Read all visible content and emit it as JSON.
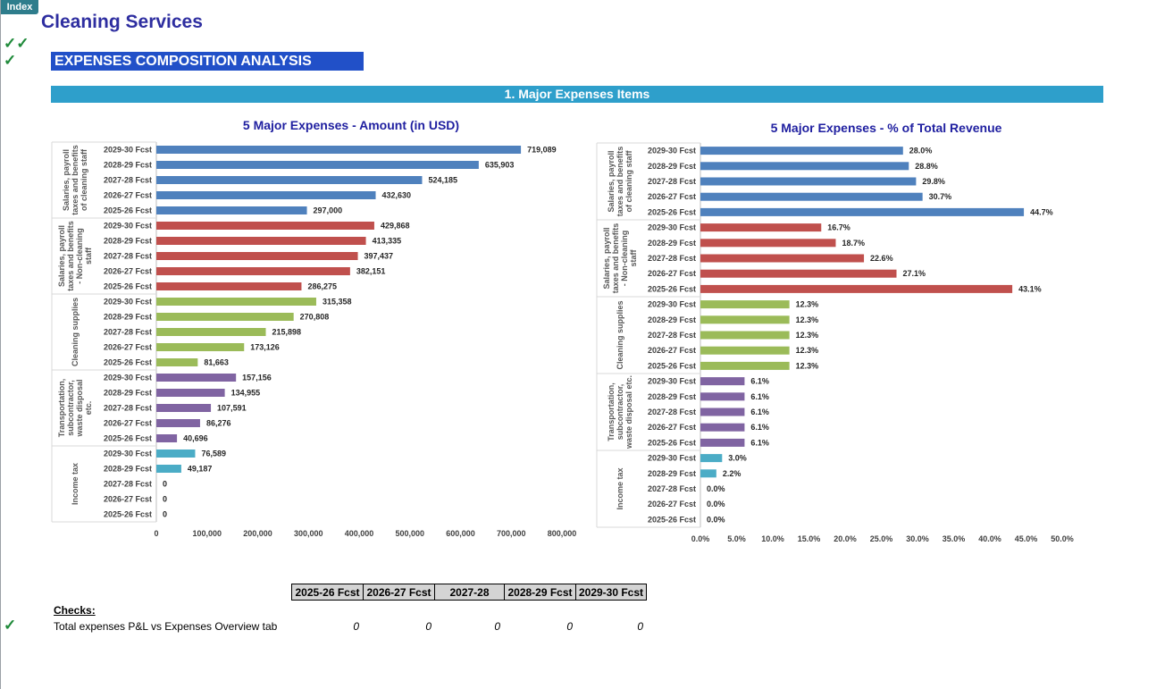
{
  "nav": {
    "index_label": "Index"
  },
  "app": {
    "title": "Cleaning Services"
  },
  "section": {
    "title": "EXPENSES COMPOSITION ANALYSIS"
  },
  "subsection": {
    "title": "1. Major Expenses Items"
  },
  "status": {
    "check_mark": "✓✓",
    "check_mark_single": "✓"
  },
  "colors": {
    "salaries_cleaning": "#4f81bd",
    "salaries_non_cleaning": "#c0504d",
    "cleaning_supplies": "#9bbb59",
    "transportation": "#8064a2",
    "income_tax": "#4bacc6",
    "title_blue": "#1f1fa0"
  },
  "chart_data": [
    {
      "type": "bar",
      "orientation": "horizontal",
      "title": "5 Major Expenses - Amount (in USD)",
      "xlim": [
        0,
        800000
      ],
      "xticks": [
        "0",
        "100,000",
        "200,000",
        "300,000",
        "400,000",
        "500,000",
        "600,000",
        "700,000",
        "800,000"
      ],
      "groups": [
        {
          "name": "Salaries, payroll taxes and benefits of cleaning staff",
          "categories": [
            "2029-30 Fcst",
            "2028-29 Fcst",
            "2027-28 Fcst",
            "2026-27 Fcst",
            "2025-26 Fcst"
          ],
          "values": [
            719089,
            635903,
            524185,
            432630,
            297000
          ],
          "labels": [
            "719,089",
            "635,903",
            "524,185",
            "432,630",
            "297,000"
          ]
        },
        {
          "name": "Salaries, payroll taxes and benefits - Non-cleaning staff",
          "categories": [
            "2029-30 Fcst",
            "2028-29 Fcst",
            "2027-28 Fcst",
            "2026-27 Fcst",
            "2025-26 Fcst"
          ],
          "values": [
            429868,
            413335,
            397437,
            382151,
            286275
          ],
          "labels": [
            "429,868",
            "413,335",
            "397,437",
            "382,151",
            "286,275"
          ]
        },
        {
          "name": "Cleaning supplies",
          "categories": [
            "2029-30 Fcst",
            "2028-29 Fcst",
            "2027-28 Fcst",
            "2026-27 Fcst",
            "2025-26 Fcst"
          ],
          "values": [
            315358,
            270808,
            215898,
            173126,
            81663
          ],
          "labels": [
            "315,358",
            "270,808",
            "215,898",
            "173,126",
            "81,663"
          ]
        },
        {
          "name": "Transportation, subcontractor, waste disposal etc.",
          "categories": [
            "2029-30 Fcst",
            "2028-29 Fcst",
            "2027-28 Fcst",
            "2026-27 Fcst",
            "2025-26 Fcst"
          ],
          "values": [
            157156,
            134955,
            107591,
            86276,
            40696
          ],
          "labels": [
            "157,156",
            "134,955",
            "107,591",
            "86,276",
            "40,696"
          ]
        },
        {
          "name": "Income tax",
          "categories": [
            "2029-30 Fcst",
            "2028-29 Fcst",
            "2027-28 Fcst",
            "2026-27 Fcst",
            "2025-26 Fcst"
          ],
          "values": [
            76589,
            49187,
            0,
            0,
            0
          ],
          "labels": [
            "76,589",
            "49,187",
            "0",
            "0",
            "0"
          ]
        }
      ]
    },
    {
      "type": "bar",
      "orientation": "horizontal",
      "title": "5 Major Expenses - % of Total Revenue",
      "xlim": [
        0,
        50
      ],
      "xticks": [
        "0.0%",
        "5.0%",
        "10.0%",
        "15.0%",
        "20.0%",
        "25.0%",
        "30.0%",
        "35.0%",
        "40.0%",
        "45.0%",
        "50.0%"
      ],
      "groups": [
        {
          "name": "Salaries, payroll taxes and benefits of cleaning staff",
          "categories": [
            "2029-30 Fcst",
            "2028-29 Fcst",
            "2027-28 Fcst",
            "2026-27 Fcst",
            "2025-26 Fcst"
          ],
          "values": [
            28.0,
            28.8,
            29.8,
            30.7,
            44.7
          ],
          "labels": [
            "28.0%",
            "28.8%",
            "29.8%",
            "30.7%",
            "44.7%"
          ]
        },
        {
          "name": "Salaries, payroll taxes and benefits - Non-cleaning staff",
          "categories": [
            "2029-30 Fcst",
            "2028-29 Fcst",
            "2027-28 Fcst",
            "2026-27 Fcst",
            "2025-26 Fcst"
          ],
          "values": [
            16.7,
            18.7,
            22.6,
            27.1,
            43.1
          ],
          "labels": [
            "16.7%",
            "18.7%",
            "22.6%",
            "27.1%",
            "43.1%"
          ]
        },
        {
          "name": "Cleaning supplies",
          "categories": [
            "2029-30 Fcst",
            "2028-29 Fcst",
            "2027-28 Fcst",
            "2026-27 Fcst",
            "2025-26 Fcst"
          ],
          "values": [
            12.3,
            12.3,
            12.3,
            12.3,
            12.3
          ],
          "labels": [
            "12.3%",
            "12.3%",
            "12.3%",
            "12.3%",
            "12.3%"
          ]
        },
        {
          "name": "Transportation, subcontractor, waste disposal etc.",
          "categories": [
            "2029-30 Fcst",
            "2028-29 Fcst",
            "2027-28 Fcst",
            "2026-27 Fcst",
            "2025-26 Fcst"
          ],
          "values": [
            6.1,
            6.1,
            6.1,
            6.1,
            6.1
          ],
          "labels": [
            "6.1%",
            "6.1%",
            "6.1%",
            "6.1%",
            "6.1%"
          ]
        },
        {
          "name": "Income tax",
          "categories": [
            "2029-30 Fcst",
            "2028-29 Fcst",
            "2027-28 Fcst",
            "2026-27 Fcst",
            "2025-26 Fcst"
          ],
          "values": [
            3.0,
            2.2,
            0.0,
            0.0,
            0.0
          ],
          "labels": [
            "3.0%",
            "2.2%",
            "0.0%",
            "0.0%",
            "0.0%"
          ]
        }
      ]
    }
  ],
  "checks": {
    "heading": "Checks:",
    "columns": [
      "2025-26 Fcst",
      "2026-27 Fcst",
      "2027-28",
      "2028-29 Fcst",
      "2029-30 Fcst"
    ],
    "row_label": "Total expenses P&L vs Expenses Overview tab",
    "values": [
      "0",
      "0",
      "0",
      "0",
      "0"
    ]
  }
}
